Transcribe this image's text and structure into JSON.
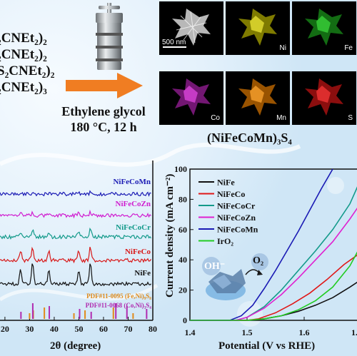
{
  "precursors": [
    "₂CNEt₂)₂",
    "₂CNEt₂)₂",
    "S₂CNEt₂)₂",
    "₂CNEt₂)₃"
  ],
  "conditions": {
    "solvent": "Ethylene glycol",
    "temperature_time": "180 °C, 12 h"
  },
  "eds": {
    "scale_bar": "500 nm",
    "panels": [
      {
        "element": "",
        "color": "#dddddd"
      },
      {
        "element": "Ni",
        "color": "#e8e000"
      },
      {
        "element": "Fe",
        "color": "#22c422"
      },
      {
        "element": "Co",
        "color": "#d12ad1"
      },
      {
        "element": "Mn",
        "color": "#ff8a00"
      },
      {
        "element": "S",
        "color": "#e81818"
      }
    ]
  },
  "product": "(NiFeCoMn)₃S₄",
  "chart_data": [
    {
      "type": "line",
      "xlabel": "2θ (degree)",
      "ylabel": "",
      "xlim": [
        18,
        80
      ],
      "xticks": [
        20,
        30,
        40,
        50,
        60,
        70,
        80
      ],
      "series": [
        {
          "name": "NiFeCoMn",
          "color": "#1a1ab4"
        },
        {
          "name": "NiFeCoZn",
          "color": "#d01cd0"
        },
        {
          "name": "NiFeCoCr",
          "color": "#139a8a"
        },
        {
          "name": "NiFeCo",
          "color": "#d81818"
        },
        {
          "name": "NiFe",
          "color": "#111111"
        }
      ],
      "references": [
        {
          "name": "PDF#11-0095 (Fe,Ni)₉S₈",
          "color": "#e08a1a",
          "peaks": [
            30.0,
            31.5,
            36.0,
            48.0,
            52.5,
            64.0,
            72.0
          ]
        },
        {
          "name": "PDF#11-0068 (Co,Ni)₃S₄",
          "color": "#b02cb0",
          "peaks": [
            26.5,
            31.3,
            38.0,
            50.3,
            55.0,
            65.0,
            69.5,
            77.5
          ]
        }
      ],
      "major_peaks": [
        26.5,
        31.3,
        38.0,
        50.3,
        55.0
      ]
    },
    {
      "type": "line",
      "xlabel": "Potential (V vs RHE)",
      "ylabel": "Current density (mA cm⁻²)",
      "xlim": [
        1.4,
        1.7
      ],
      "ylim": [
        0,
        100
      ],
      "xticks": [
        1.4,
        1.5,
        1.6,
        1.7
      ],
      "xtick_labels": [
        "1.4",
        "1.5",
        "1.6",
        "1."
      ],
      "yticks": [
        0,
        20,
        40,
        60,
        80,
        100
      ],
      "legend": "top-left",
      "inset_labels": {
        "reactant": "OH⁻",
        "product": "O₂"
      },
      "series": [
        {
          "name": "NiFe",
          "color": "#111111",
          "x": [
            1.4,
            1.5,
            1.53,
            1.56,
            1.59,
            1.62,
            1.65,
            1.68,
            1.7
          ],
          "y": [
            0,
            0,
            1,
            3,
            6,
            10,
            15,
            22,
            27
          ]
        },
        {
          "name": "NiFeCo",
          "color": "#e01818",
          "x": [
            1.4,
            1.5,
            1.52,
            1.55,
            1.58,
            1.61,
            1.64,
            1.67,
            1.7
          ],
          "y": [
            0,
            0,
            1,
            5,
            11,
            18,
            27,
            37,
            45
          ]
        },
        {
          "name": "NiFeCoCr",
          "color": "#139a8a",
          "x": [
            1.4,
            1.48,
            1.5,
            1.53,
            1.56,
            1.59,
            1.62,
            1.65,
            1.68,
            1.7
          ],
          "y": [
            0,
            0,
            2,
            9,
            20,
            33,
            46,
            60,
            77,
            94
          ]
        },
        {
          "name": "NiFeCoZn",
          "color": "#e020d0",
          "x": [
            1.4,
            1.48,
            1.5,
            1.53,
            1.56,
            1.59,
            1.62,
            1.65,
            1.68,
            1.7
          ],
          "y": [
            0,
            0,
            2,
            8,
            17,
            28,
            40,
            52,
            67,
            78
          ]
        },
        {
          "name": "NiFeCoMn",
          "color": "#1a1ab4",
          "x": [
            1.4,
            1.47,
            1.49,
            1.51,
            1.53,
            1.55,
            1.57,
            1.59,
            1.61,
            1.63,
            1.65
          ],
          "y": [
            0,
            0,
            3,
            10,
            21,
            33,
            46,
            59,
            73,
            87,
            100
          ]
        },
        {
          "name": "IrO₂",
          "color": "#22cc22",
          "x": [
            1.4,
            1.5,
            1.53,
            1.56,
            1.59,
            1.62,
            1.65,
            1.68,
            1.7
          ],
          "y": [
            0,
            0,
            1,
            3,
            7,
            13,
            22,
            36,
            50
          ]
        }
      ]
    }
  ]
}
